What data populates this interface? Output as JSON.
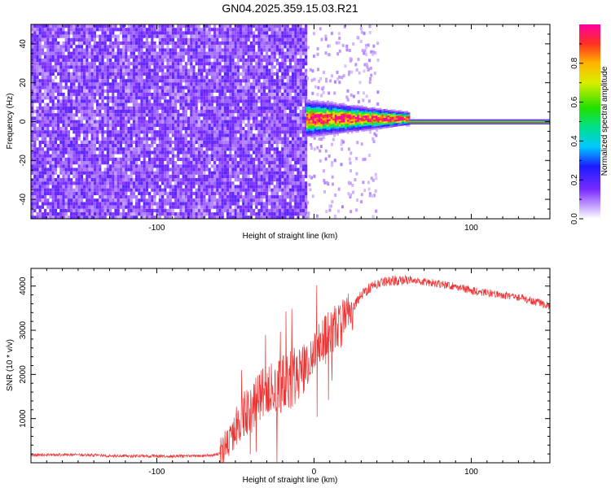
{
  "figure_title": "GN04.2025.359.15.03.R21",
  "colors": {
    "axis": "#000000",
    "snr_line": "#ee3333",
    "spectrogram_low": "#7a2cff",
    "spectrogram_faint": "#d9c6ff"
  },
  "chart_data": [
    {
      "id": "spectrogram",
      "type": "heatmap",
      "title": "",
      "xlabel": "Height of straight line (km)",
      "ylabel": "Frequency (Hz)",
      "xlim": [
        -180,
        150
      ],
      "ylim": [
        -50,
        50
      ],
      "xticks": [
        -100,
        0,
        100
      ],
      "xtick_labels": [
        "-100",
        "",
        "100"
      ],
      "yticks": [
        -40,
        -20,
        0,
        20,
        40
      ],
      "ytick_labels": [
        "-40",
        "-20",
        "0",
        "20",
        "40"
      ],
      "colorbar": {
        "label": "Normalized spectral amplitude",
        "range": [
          0,
          1
        ],
        "ticks": [
          0.0,
          0.2,
          0.4,
          0.6,
          0.8
        ],
        "tick_labels": [
          "0.0",
          "0.2",
          "0.4",
          "0.6",
          "0.8"
        ]
      },
      "regions": [
        {
          "name": "broadband noise",
          "x_range": [
            -180,
            -5
          ],
          "freq_range": [
            -50,
            50
          ],
          "amplitude": 0.15
        },
        {
          "name": "signal onset",
          "x_range": [
            -5,
            60
          ],
          "freq_center": 1.5,
          "freq_halfwidth": 4,
          "amplitude": 1.0
        },
        {
          "name": "carrier line",
          "x_range": [
            60,
            150
          ],
          "freq_center": 0,
          "amplitude": 1.0
        }
      ]
    },
    {
      "id": "snr",
      "type": "line",
      "title": "",
      "xlabel": "Height of straight line (km)",
      "ylabel": "SNR (10 * v/v)",
      "xlim": [
        -180,
        150
      ],
      "ylim": [
        0,
        4400
      ],
      "xticks": [
        -100,
        0,
        100
      ],
      "xtick_labels": [
        "-100",
        "0",
        "100"
      ],
      "yticks": [
        1000,
        2000,
        3000,
        4000
      ],
      "ytick_labels": [
        "1000",
        "2000",
        "3000",
        "4000"
      ],
      "series": [
        {
          "name": "SNR",
          "x": [
            -180,
            -150,
            -120,
            -90,
            -70,
            -60,
            -55,
            -50,
            -45,
            -40,
            -35,
            -30,
            -25,
            -20,
            -15,
            -10,
            -5,
            0,
            5,
            10,
            15,
            20,
            25,
            30,
            35,
            40,
            50,
            60,
            70,
            80,
            90,
            100,
            110,
            120,
            130,
            140,
            150
          ],
          "values": [
            180,
            180,
            150,
            150,
            160,
            200,
            400,
            800,
            1100,
            1200,
            1500,
            1650,
            1700,
            1800,
            1850,
            2100,
            2250,
            2400,
            2700,
            2900,
            3100,
            3200,
            3500,
            3800,
            3950,
            4050,
            4120,
            4150,
            4100,
            4050,
            4000,
            3900,
            3850,
            3800,
            3750,
            3650,
            3550
          ]
        }
      ]
    }
  ]
}
